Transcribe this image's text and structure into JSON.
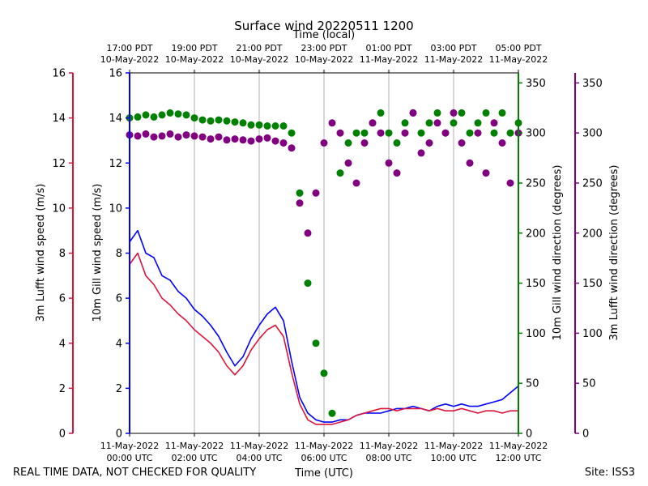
{
  "chart_data": {
    "type": "line+scatter",
    "title": "Surface wind 20220511 1200",
    "xlabel_bottom": "Time (UTC)",
    "xlabel_top": "Time (local)",
    "x_unit": "hours since 11-May-2022 00:00 UTC",
    "xlim": [
      0,
      12
    ],
    "bottom_ticks": [
      {
        "x": 0,
        "line1": "11-May-2022",
        "line2": "00:00 UTC"
      },
      {
        "x": 2,
        "line1": "11-May-2022",
        "line2": "02:00 UTC"
      },
      {
        "x": 4,
        "line1": "11-May-2022",
        "line2": "04:00 UTC"
      },
      {
        "x": 6,
        "line1": "11-May-2022",
        "line2": "06:00 UTC"
      },
      {
        "x": 8,
        "line1": "11-May-2022",
        "line2": "08:00 UTC"
      },
      {
        "x": 10,
        "line1": "11-May-2022",
        "line2": "10:00 UTC"
      },
      {
        "x": 12,
        "line1": "11-May-2022",
        "line2": "12:00 UTC"
      }
    ],
    "top_ticks": [
      {
        "x": 0,
        "line1": "17:00 PDT",
        "line2": "10-May-2022"
      },
      {
        "x": 2,
        "line1": "19:00 PDT",
        "line2": "10-May-2022"
      },
      {
        "x": 4,
        "line1": "21:00 PDT",
        "line2": "10-May-2022"
      },
      {
        "x": 6,
        "line1": "23:00 PDT",
        "line2": "10-May-2022"
      },
      {
        "x": 8,
        "line1": "01:00 PDT",
        "line2": "11-May-2022"
      },
      {
        "x": 10,
        "line1": "03:00 PDT",
        "line2": "11-May-2022"
      },
      {
        "x": 12,
        "line1": "05:00 PDT",
        "line2": "11-May-2022"
      }
    ],
    "axes": {
      "lufft_speed": {
        "label": "3m Lufft wind speed (m/s)",
        "color": "#dc143c",
        "ylim": [
          0,
          16
        ],
        "ticks": [
          0,
          2,
          4,
          6,
          8,
          10,
          12,
          14,
          16
        ]
      },
      "gill_speed": {
        "label": "10m Gill wind speed (m/s)",
        "color": "#0000ff",
        "ylim": [
          0,
          16
        ],
        "ticks": [
          0,
          2,
          4,
          6,
          8,
          10,
          12,
          14,
          16
        ]
      },
      "gill_dir": {
        "label": "10m Gill wind direction (degrees)",
        "color": "#008000",
        "ylim": [
          0,
          360
        ],
        "ticks": [
          0,
          50,
          100,
          150,
          200,
          250,
          300,
          350
        ]
      },
      "lufft_dir": {
        "label": "3m Lufft wind direction (degrees)",
        "color": "#800080",
        "ylim": [
          0,
          360
        ],
        "ticks": [
          0,
          50,
          100,
          150,
          200,
          250,
          300,
          350
        ]
      }
    },
    "series": [
      {
        "name": "10m Gill wind speed",
        "axis": "gill_speed",
        "style": "line",
        "color": "#0000ff",
        "x": [
          0,
          0.25,
          0.5,
          0.75,
          1,
          1.25,
          1.5,
          1.75,
          2,
          2.25,
          2.5,
          2.75,
          3,
          3.25,
          3.5,
          3.75,
          4,
          4.25,
          4.5,
          4.75,
          5,
          5.25,
          5.5,
          5.75,
          6,
          6.25,
          6.5,
          6.75,
          7,
          7.25,
          7.5,
          7.75,
          8,
          8.25,
          8.5,
          8.75,
          9,
          9.25,
          9.5,
          9.75,
          10,
          10.25,
          10.5,
          10.75,
          11,
          11.25,
          11.5,
          11.75,
          12
        ],
        "y": [
          8.5,
          9.0,
          8.0,
          7.8,
          7.0,
          6.8,
          6.3,
          6.0,
          5.5,
          5.2,
          4.8,
          4.3,
          3.6,
          3.0,
          3.4,
          4.2,
          4.8,
          5.3,
          5.6,
          5.0,
          3.2,
          1.6,
          0.9,
          0.6,
          0.5,
          0.5,
          0.6,
          0.6,
          0.8,
          0.9,
          0.9,
          0.9,
          1.0,
          1.1,
          1.1,
          1.2,
          1.1,
          1.0,
          1.2,
          1.3,
          1.2,
          1.3,
          1.2,
          1.2,
          1.3,
          1.4,
          1.5,
          1.8,
          2.1
        ]
      },
      {
        "name": "3m Lufft wind speed",
        "axis": "lufft_speed",
        "style": "line",
        "color": "#dc143c",
        "x": [
          0,
          0.25,
          0.5,
          0.75,
          1,
          1.25,
          1.5,
          1.75,
          2,
          2.25,
          2.5,
          2.75,
          3,
          3.25,
          3.5,
          3.75,
          4,
          4.25,
          4.5,
          4.75,
          5,
          5.25,
          5.5,
          5.75,
          6,
          6.25,
          6.5,
          6.75,
          7,
          7.25,
          7.5,
          7.75,
          8,
          8.25,
          8.5,
          8.75,
          9,
          9.25,
          9.5,
          9.75,
          10,
          10.25,
          10.5,
          10.75,
          11,
          11.25,
          11.5,
          11.75,
          12
        ],
        "y": [
          7.5,
          8.0,
          7.0,
          6.6,
          6.0,
          5.7,
          5.3,
          5.0,
          4.6,
          4.3,
          4.0,
          3.6,
          3.0,
          2.6,
          3.0,
          3.7,
          4.2,
          4.6,
          4.8,
          4.3,
          2.7,
          1.3,
          0.6,
          0.4,
          0.4,
          0.4,
          0.5,
          0.6,
          0.8,
          0.9,
          1.0,
          1.1,
          1.1,
          1.0,
          1.1,
          1.1,
          1.1,
          1.0,
          1.1,
          1.0,
          1.0,
          1.1,
          1.0,
          0.9,
          1.0,
          1.0,
          0.9,
          1.0,
          1.0
        ]
      },
      {
        "name": "10m Gill wind direction",
        "axis": "gill_dir",
        "style": "scatter",
        "color": "#008000",
        "x": [
          0,
          0.25,
          0.5,
          0.75,
          1,
          1.25,
          1.5,
          1.75,
          2,
          2.25,
          2.5,
          2.75,
          3,
          3.25,
          3.5,
          3.75,
          4,
          4.25,
          4.5,
          4.75,
          5,
          5.25,
          5.5,
          5.75,
          6,
          6.25,
          6.5,
          6.75,
          7,
          7.25,
          7.5,
          7.75,
          8,
          8.25,
          8.5,
          8.75,
          9,
          9.25,
          9.5,
          9.75,
          10,
          10.25,
          10.5,
          10.75,
          11,
          11.25,
          11.5,
          11.75,
          12
        ],
        "y": [
          315,
          316,
          318,
          316,
          318,
          320,
          319,
          318,
          315,
          313,
          312,
          313,
          312,
          311,
          310,
          308,
          308,
          307,
          307,
          307,
          300,
          240,
          150,
          90,
          60,
          20,
          260,
          290,
          300,
          300,
          310,
          320,
          300,
          290,
          310,
          320,
          300,
          310,
          320,
          300,
          310,
          320,
          300,
          310,
          320,
          300,
          320,
          300,
          310
        ]
      },
      {
        "name": "3m Lufft wind direction",
        "axis": "lufft_dir",
        "style": "scatter",
        "color": "#800080",
        "x": [
          0,
          0.25,
          0.5,
          0.75,
          1,
          1.25,
          1.5,
          1.75,
          2,
          2.25,
          2.5,
          2.75,
          3,
          3.25,
          3.5,
          3.75,
          4,
          4.25,
          4.5,
          4.75,
          5,
          5.25,
          5.5,
          5.75,
          6,
          6.25,
          6.5,
          6.75,
          7,
          7.25,
          7.5,
          7.75,
          8,
          8.25,
          8.5,
          8.75,
          9,
          9.25,
          9.5,
          9.75,
          10,
          10.25,
          10.5,
          10.75,
          11,
          11.25,
          11.5,
          11.75,
          12
        ],
        "y": [
          298,
          297,
          299,
          296,
          297,
          299,
          296,
          298,
          297,
          296,
          294,
          296,
          293,
          294,
          293,
          292,
          294,
          295,
          292,
          290,
          285,
          230,
          200,
          240,
          290,
          310,
          300,
          270,
          250,
          290,
          310,
          300,
          270,
          260,
          300,
          320,
          280,
          290,
          310,
          300,
          320,
          290,
          270,
          300,
          260,
          310,
          290,
          250,
          300
        ]
      }
    ]
  },
  "footer": {
    "left": "REAL TIME DATA, NOT CHECKED FOR QUALITY",
    "right": "Site: ISS3"
  },
  "colors": {
    "lufft_speed": "#dc143c",
    "gill_speed": "#0000ff",
    "gill_dir": "#008000",
    "lufft_dir": "#800080"
  }
}
